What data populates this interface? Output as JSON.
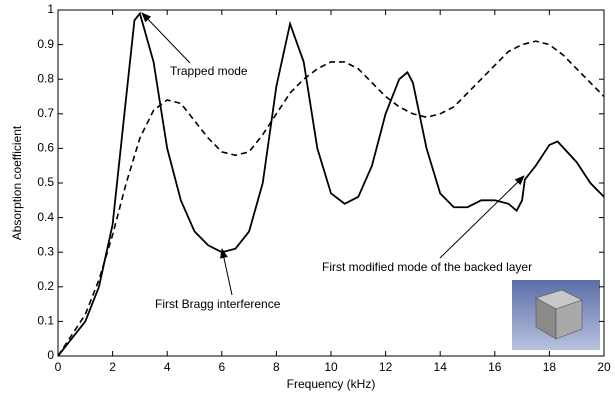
{
  "chart_data": {
    "type": "line",
    "xlabel": "Frequency (kHz)",
    "ylabel": "Absorption coefficient",
    "xlim": [
      0,
      20
    ],
    "xticks": [
      0,
      2,
      4,
      6,
      8,
      10,
      12,
      14,
      16,
      18,
      20
    ],
    "ylim": [
      0,
      1
    ],
    "yticks": [
      0,
      0.1,
      0.2,
      0.3,
      0.4,
      0.5,
      0.6,
      0.7,
      0.8,
      0.9,
      1
    ],
    "grid": false,
    "annotations": [
      "Trapped mode",
      "First Bragg interference",
      "First modified mode of the backed layer"
    ],
    "series": [
      {
        "color": "#000000",
        "dashed": false,
        "x": [
          0,
          0.5,
          1,
          1.5,
          2,
          2.5,
          2.8,
          3,
          3.5,
          4,
          4.5,
          5,
          5.5,
          6,
          6.5,
          7,
          7.5,
          8,
          8.5,
          9,
          9.5,
          10,
          10.5,
          11,
          11.5,
          12,
          12.5,
          12.8,
          13,
          13.5,
          14,
          14.5,
          15,
          15.5,
          16,
          16.5,
          16.8,
          17,
          17.1,
          17.3,
          17.5,
          18,
          18.3,
          19,
          19.5,
          20
        ],
        "values": [
          0,
          0.05,
          0.1,
          0.2,
          0.38,
          0.75,
          0.97,
          0.99,
          0.85,
          0.6,
          0.45,
          0.36,
          0.32,
          0.3,
          0.31,
          0.36,
          0.5,
          0.78,
          0.96,
          0.85,
          0.6,
          0.47,
          0.44,
          0.46,
          0.55,
          0.7,
          0.8,
          0.82,
          0.79,
          0.6,
          0.47,
          0.43,
          0.43,
          0.45,
          0.45,
          0.44,
          0.42,
          0.45,
          0.51,
          0.53,
          0.55,
          0.61,
          0.62,
          0.56,
          0.5,
          0.46
        ]
      },
      {
        "color": "#000000",
        "dashed": true,
        "x": [
          0,
          0.5,
          1,
          1.5,
          2,
          2.5,
          3,
          3.5,
          4,
          4.5,
          5,
          5.5,
          6,
          6.5,
          7,
          7.5,
          8,
          8.5,
          9,
          9.5,
          10,
          10.5,
          11,
          11.5,
          12,
          12.5,
          13,
          13.5,
          14,
          14.5,
          15,
          15.5,
          16,
          16.5,
          17,
          17.5,
          18,
          18.5,
          19,
          19.5,
          20
        ],
        "values": [
          0,
          0.06,
          0.12,
          0.22,
          0.35,
          0.5,
          0.63,
          0.71,
          0.74,
          0.73,
          0.68,
          0.63,
          0.59,
          0.58,
          0.59,
          0.64,
          0.7,
          0.76,
          0.8,
          0.83,
          0.85,
          0.85,
          0.83,
          0.79,
          0.75,
          0.72,
          0.7,
          0.69,
          0.7,
          0.72,
          0.76,
          0.8,
          0.84,
          0.88,
          0.9,
          0.91,
          0.9,
          0.87,
          0.83,
          0.79,
          0.75
        ]
      }
    ]
  }
}
